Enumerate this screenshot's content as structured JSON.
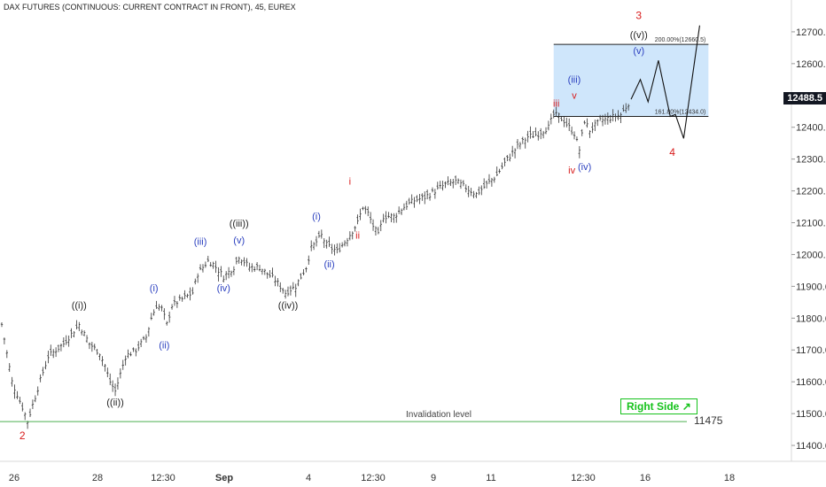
{
  "header": {
    "title": "DAX FUTURES (CONTINUOUS: CURRENT CONTRACT IN FRONT), 45, EUREX"
  },
  "colors": {
    "bars": "#333333",
    "wave_red": "#d81b1b",
    "wave_blue": "#2a3fbf",
    "wave_black": "#222222",
    "target_box": "#cfe6fb",
    "invalidation": "#4caf50",
    "right_side": "#15c21b"
  },
  "chart_data": {
    "type": "ohlc",
    "x_tick_labels": [
      "26",
      "28",
      "12:30",
      "Sep",
      "4",
      "12:30",
      "9",
      "11",
      "12:30",
      "16",
      "18"
    ],
    "y_axis": {
      "range": [
        11350,
        12800
      ],
      "ticks": [
        11400,
        11500,
        11600,
        11700,
        11800,
        11900,
        12000,
        12100,
        12200,
        12300,
        12400,
        12500,
        12600,
        12700
      ],
      "tick_labels": [
        "11400.0",
        "11500.0",
        "11600.0",
        "11700.0",
        "11800.0",
        "11900.0",
        "12000.0",
        "12100.0",
        "12200.0",
        "12300.0",
        "12400.0",
        "12500.0",
        "12600.0",
        "12700.0"
      ]
    },
    "last_price": "12488.5",
    "price_path": [
      [
        0,
        11780
      ],
      [
        2,
        11600
      ],
      [
        4,
        11520
      ],
      [
        5,
        11475
      ],
      [
        7,
        11580
      ],
      [
        9,
        11680
      ],
      [
        12,
        11720
      ],
      [
        14,
        11760
      ],
      [
        15,
        11780
      ],
      [
        17,
        11720
      ],
      [
        19,
        11690
      ],
      [
        20,
        11650
      ],
      [
        21,
        11600
      ],
      [
        22,
        11570
      ],
      [
        24,
        11680
      ],
      [
        26,
        11700
      ],
      [
        28,
        11740
      ],
      [
        29,
        11800
      ],
      [
        30,
        11840
      ],
      [
        31,
        11830
      ],
      [
        32,
        11780
      ],
      [
        33,
        11840
      ],
      [
        35,
        11860
      ],
      [
        37,
        11880
      ],
      [
        38,
        11940
      ],
      [
        40,
        11980
      ],
      [
        41,
        11970
      ],
      [
        43,
        11930
      ],
      [
        45,
        11960
      ],
      [
        46,
        11995
      ],
      [
        48,
        11960
      ],
      [
        50,
        11960
      ],
      [
        53,
        11920
      ],
      [
        55,
        11880
      ],
      [
        57,
        11900
      ],
      [
        59,
        11960
      ],
      [
        60,
        12020
      ],
      [
        62,
        12060
      ],
      [
        63,
        12030
      ],
      [
        65,
        12010
      ],
      [
        67,
        12050
      ],
      [
        69,
        12100
      ],
      [
        70,
        12150
      ],
      [
        71,
        12130
      ],
      [
        72,
        12090
      ],
      [
        73,
        12060
      ],
      [
        74,
        12120
      ],
      [
        76,
        12120
      ],
      [
        78,
        12150
      ],
      [
        80,
        12170
      ],
      [
        82,
        12180
      ],
      [
        84,
        12200
      ],
      [
        86,
        12220
      ],
      [
        88,
        12230
      ],
      [
        90,
        12210
      ],
      [
        92,
        12190
      ],
      [
        94,
        12220
      ],
      [
        96,
        12250
      ],
      [
        98,
        12300
      ],
      [
        100,
        12340
      ],
      [
        102,
        12370
      ],
      [
        104,
        12380
      ],
      [
        106,
        12400
      ],
      [
        107,
        12440
      ],
      [
        108,
        12435
      ],
      [
        109,
        12420
      ],
      [
        110,
        12400
      ],
      [
        111,
        12380
      ],
      [
        112,
        12330
      ],
      [
        113,
        12420
      ],
      [
        114,
        12390
      ],
      [
        116,
        12420
      ],
      [
        118,
        12430
      ],
      [
        120,
        12440
      ],
      [
        122,
        12488
      ]
    ],
    "projection": [
      [
        122,
        12488
      ],
      [
        123.8,
        12550
      ],
      [
        125.3,
        12480
      ],
      [
        127.3,
        12610
      ],
      [
        129.6,
        12434
      ],
      [
        130.6,
        12440
      ],
      [
        132.2,
        12365
      ],
      [
        135.3,
        12720
      ]
    ],
    "target_zone": {
      "start_x": 107,
      "end_x": 137,
      "low": 12434,
      "high": 12660.5,
      "low_label": "161.80%(12434.0)",
      "high_label": "200.00%(12660.5)"
    },
    "invalidation": {
      "price": 11475,
      "label": "Invalidation level",
      "value_label": "11475"
    },
    "badge": {
      "text": "Right Side",
      "icon": "arrow-up-right-icon"
    },
    "wave_labels": [
      {
        "text": "2",
        "x": 4,
        "y": 11420,
        "color": "red"
      },
      {
        "text": "((i))",
        "x": 15,
        "y": 11830,
        "color": "black"
      },
      {
        "text": "((ii))",
        "x": 22,
        "y": 11525,
        "color": "black"
      },
      {
        "text": "(i)",
        "x": 29.5,
        "y": 11885,
        "color": "blue"
      },
      {
        "text": "(ii)",
        "x": 31.5,
        "y": 11705,
        "color": "blue"
      },
      {
        "text": "(iii)",
        "x": 38.5,
        "y": 12030,
        "color": "blue"
      },
      {
        "text": "(iv)",
        "x": 43,
        "y": 11885,
        "color": "blue"
      },
      {
        "text": "(v)",
        "x": 46,
        "y": 12035,
        "color": "blue"
      },
      {
        "text": "((iii))",
        "x": 46,
        "y": 12088,
        "color": "black"
      },
      {
        "text": "((iv))",
        "x": 55.5,
        "y": 11830,
        "color": "black"
      },
      {
        "text": "(i)",
        "x": 61,
        "y": 12110,
        "color": "blue"
      },
      {
        "text": "(ii)",
        "x": 63.5,
        "y": 11960,
        "color": "blue"
      },
      {
        "text": "i",
        "x": 67.5,
        "y": 12220,
        "color": "red"
      },
      {
        "text": "ii",
        "x": 69,
        "y": 12050,
        "color": "red"
      },
      {
        "text": "iii",
        "x": 107.5,
        "y": 12465,
        "color": "red"
      },
      {
        "text": "(iii)",
        "x": 111,
        "y": 12540,
        "color": "blue"
      },
      {
        "text": "v",
        "x": 111,
        "y": 12490,
        "color": "red"
      },
      {
        "text": "iv",
        "x": 110.5,
        "y": 12255,
        "color": "red"
      },
      {
        "text": "(iv)",
        "x": 113,
        "y": 12265,
        "color": "blue"
      },
      {
        "text": "(v)",
        "x": 123.5,
        "y": 12630,
        "color": "blue"
      },
      {
        "text": "((v))",
        "x": 123.5,
        "y": 12680,
        "color": "black"
      },
      {
        "text": "3",
        "x": 123.5,
        "y": 12740,
        "color": "red"
      },
      {
        "text": "4",
        "x": 130,
        "y": 12310,
        "color": "red"
      }
    ]
  }
}
